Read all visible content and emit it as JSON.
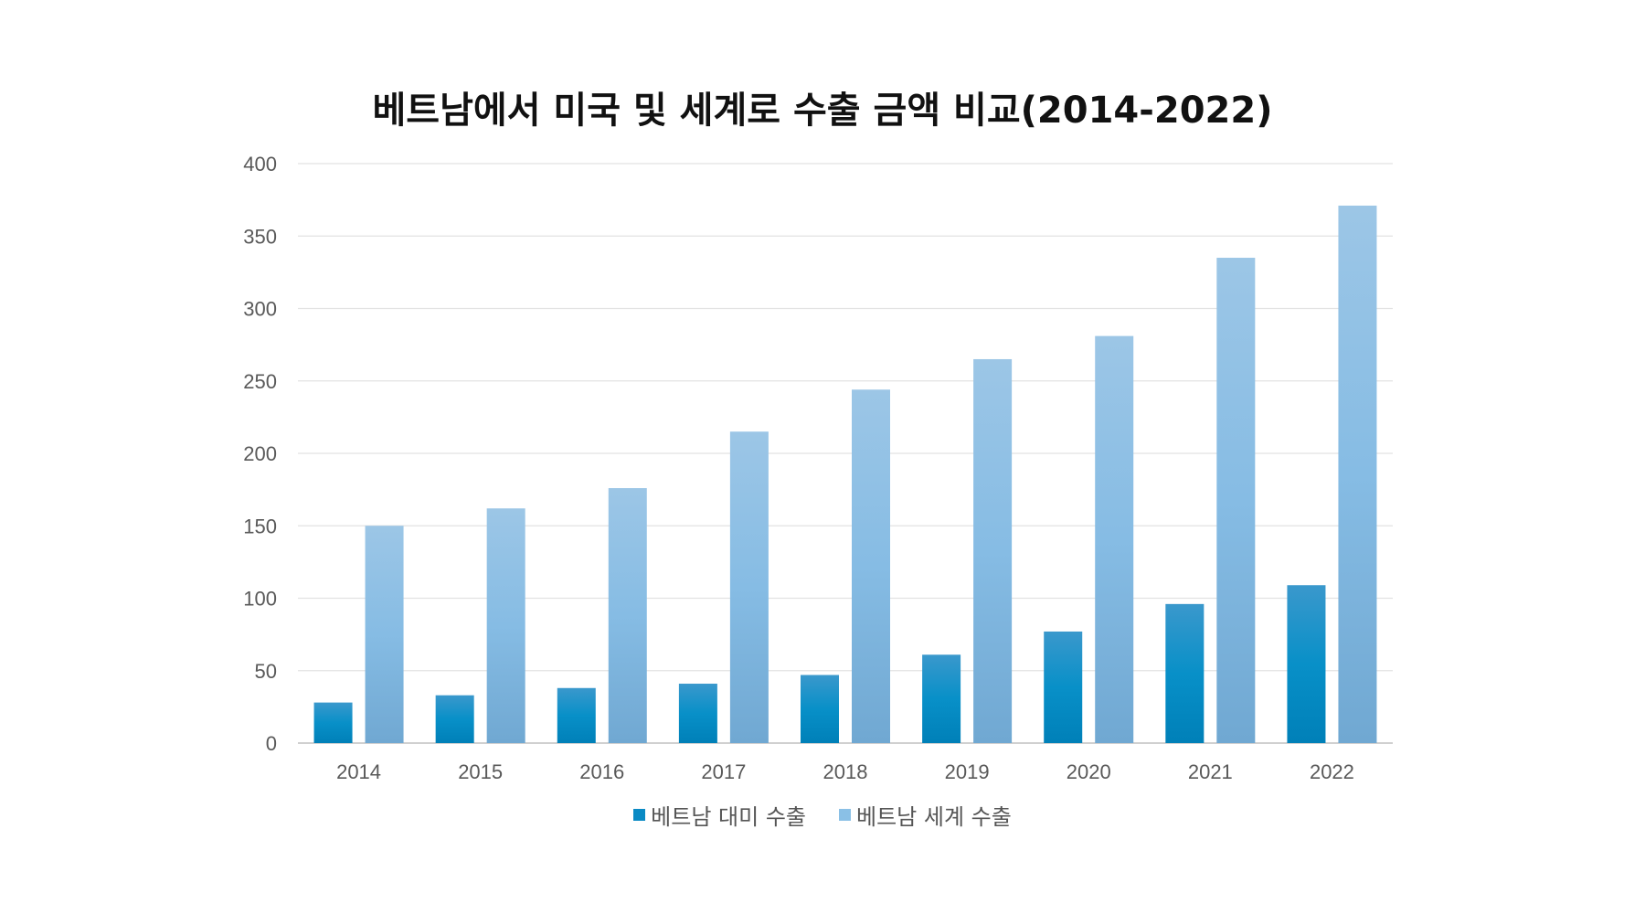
{
  "chart_data": {
    "type": "bar",
    "title": "베트남에서 미국 및 세계로 수출 금액 비교(2014-2022)",
    "xlabel": "",
    "ylabel": "",
    "categories": [
      "2014",
      "2015",
      "2016",
      "2017",
      "2018",
      "2019",
      "2020",
      "2021",
      "2022"
    ],
    "series": [
      {
        "name": "베트남 대미 수출",
        "color": "#0a8ac4",
        "values": [
          28,
          33,
          38,
          41,
          47,
          61,
          77,
          96,
          109
        ]
      },
      {
        "name": "베트남 세계 수출",
        "color": "#8ac0e6",
        "values": [
          150,
          162,
          176,
          215,
          244,
          265,
          281,
          335,
          371
        ]
      }
    ],
    "ylim": [
      0,
      400
    ],
    "yticks": [
      0,
      50,
      100,
      150,
      200,
      250,
      300,
      350,
      400
    ],
    "grid": true,
    "legend": "bottom"
  }
}
